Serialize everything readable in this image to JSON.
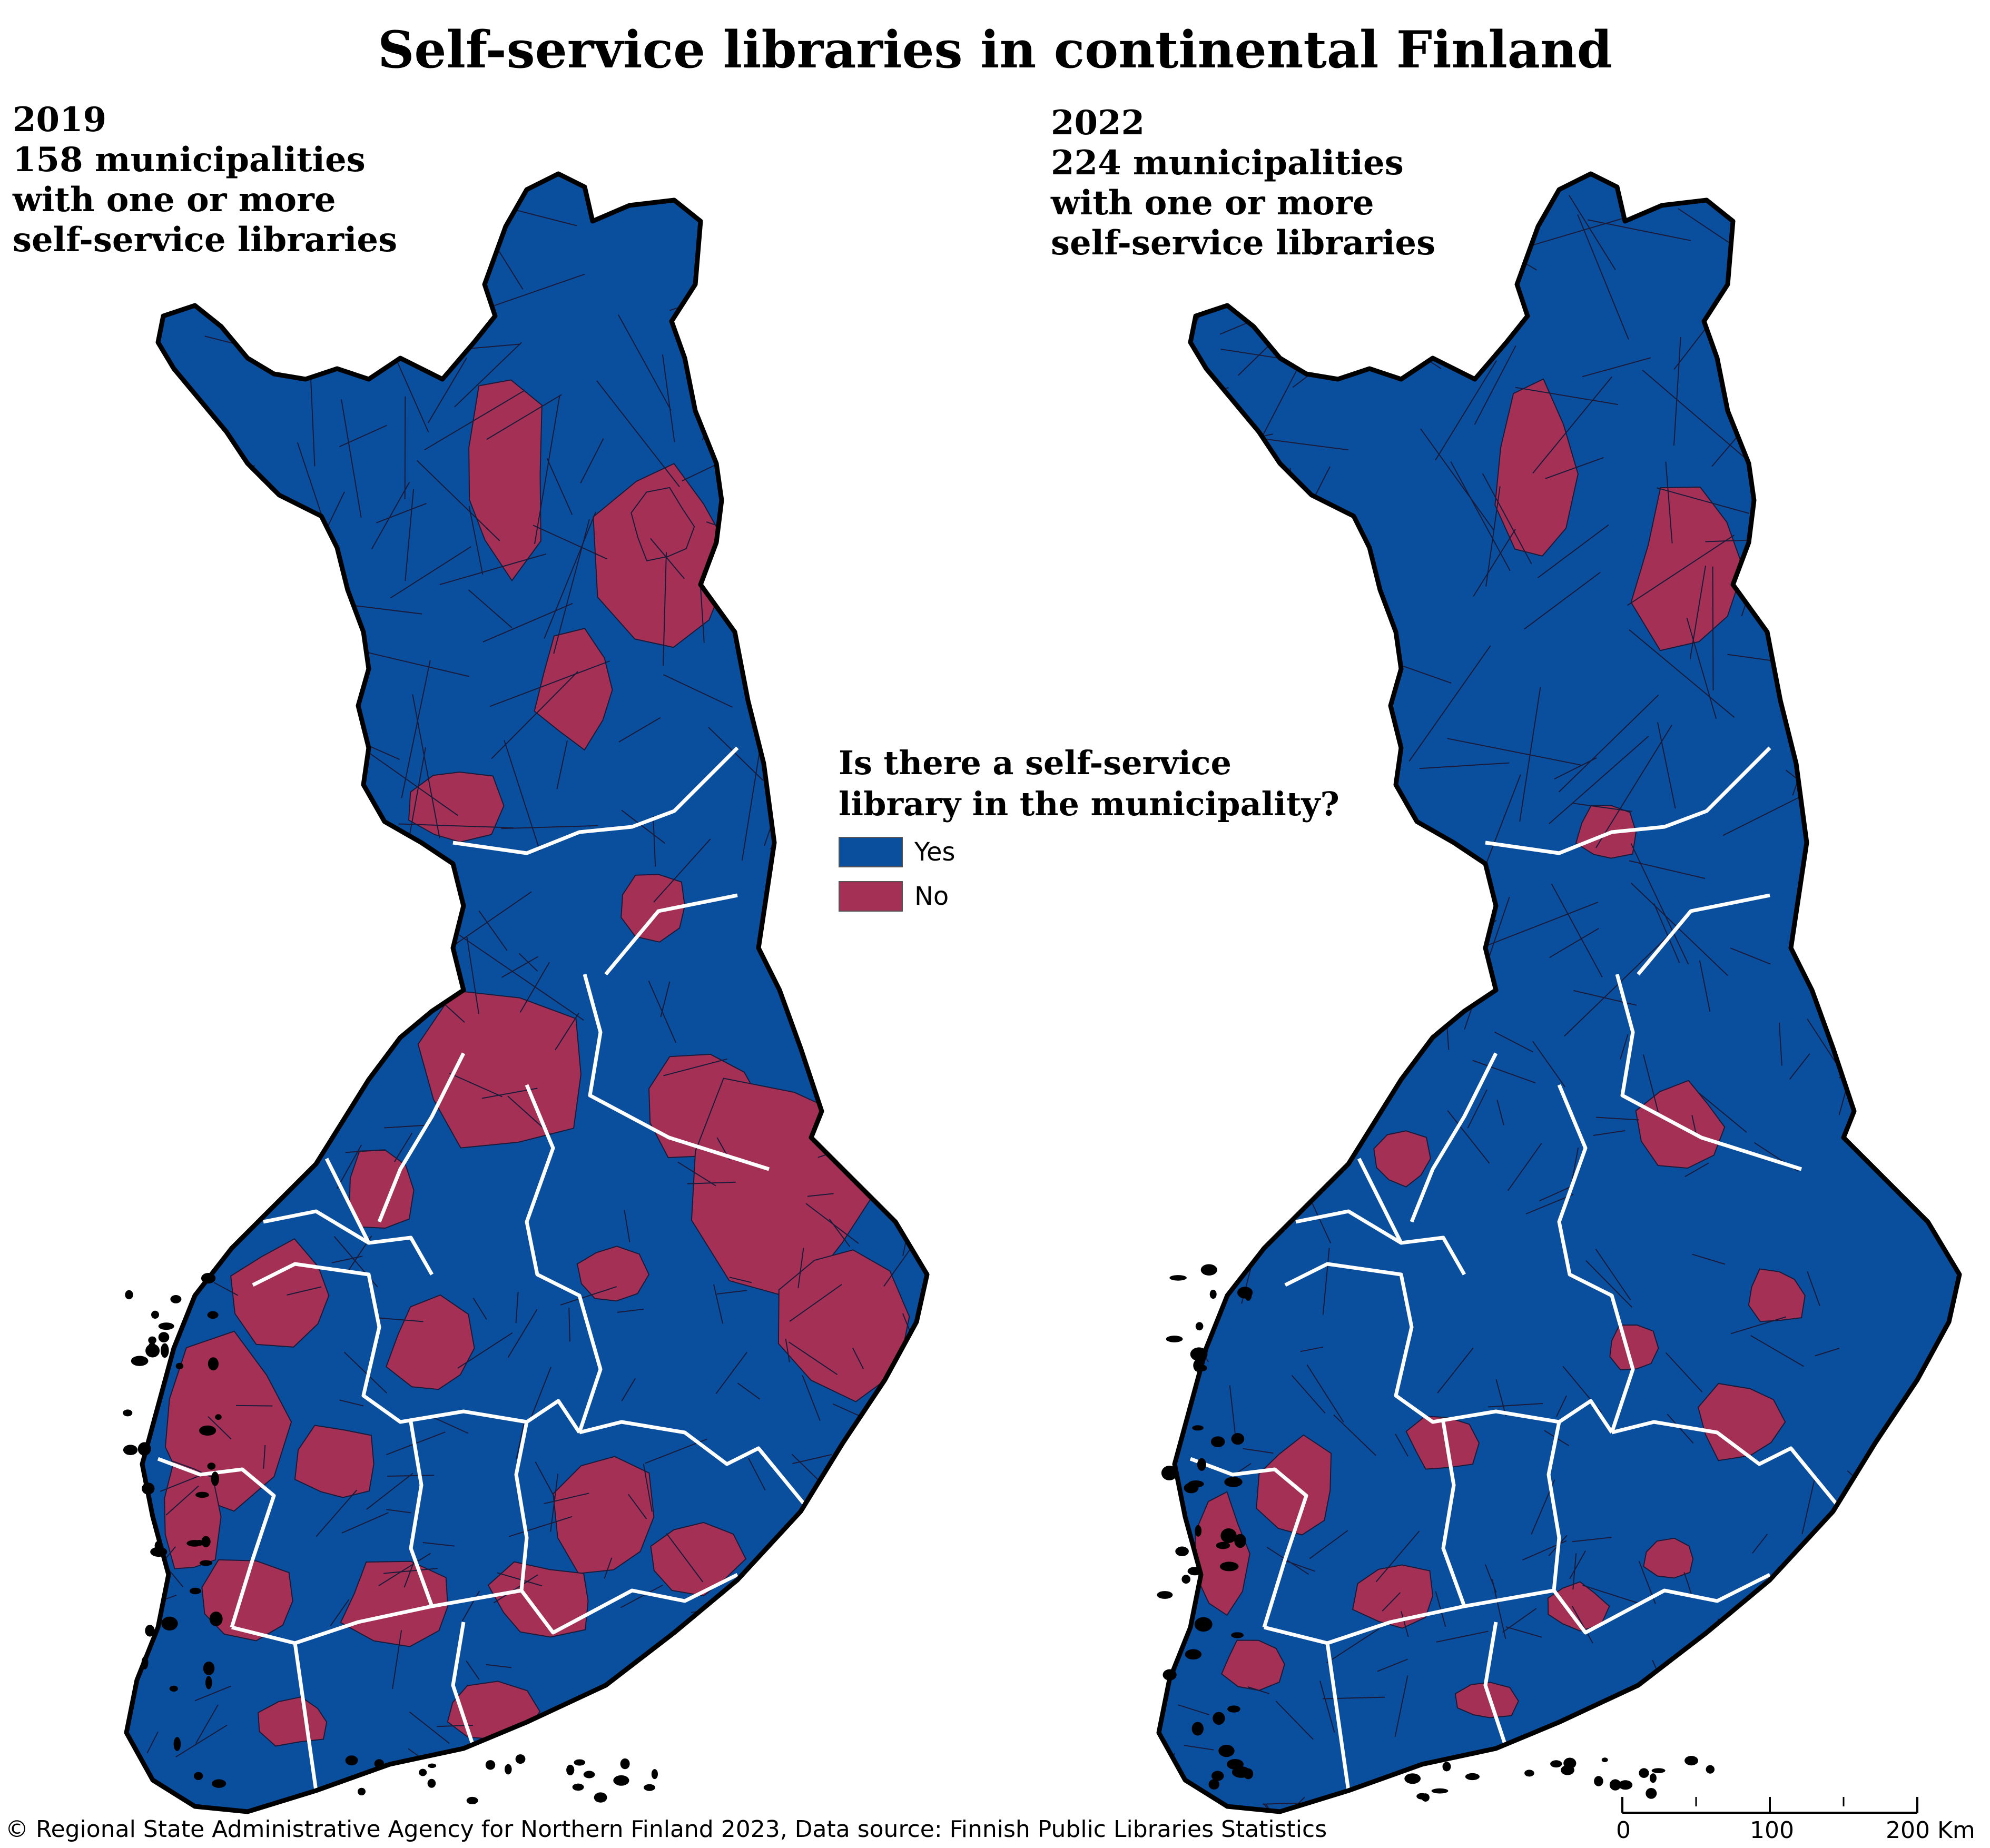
{
  "title": "Self-service libraries in continental Finland",
  "panels": [
    {
      "year": "2019",
      "line1": "158 municipalities",
      "line2": "with one or more",
      "line3": "self-service libraries"
    },
    {
      "year": "2022",
      "line1": "224 municipalities",
      "line2": "with one or more",
      "line3": "self-service libraries"
    }
  ],
  "legend": {
    "title_line1": "Is there a self-service",
    "title_line2": "library in the municipality?",
    "items": [
      {
        "label": "Yes",
        "color": "#0a4f9e"
      },
      {
        "label": "No",
        "color": "#a43055"
      }
    ]
  },
  "colors": {
    "yes": "#0a4f9e",
    "no": "#a43055",
    "municipality_border": "#1a1a3a",
    "region_border": "#ffffff",
    "coastline": "#000000"
  },
  "scale": {
    "ticks": [
      "0",
      "100",
      "200 Km"
    ]
  },
  "footer": "© Regional State Administrative Agency for Northern Finland 2023, Data source: Finnish Public Libraries Statistics"
}
